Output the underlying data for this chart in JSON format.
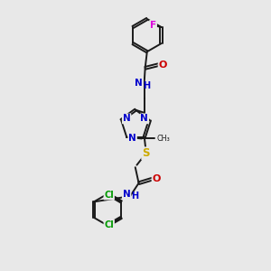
{
  "background_color": "#e8e8e8",
  "atom_colors": {
    "C": "#000000",
    "N": "#0000cc",
    "O": "#cc0000",
    "S": "#ccaa00",
    "F": "#dd00dd",
    "Cl": "#009900",
    "H": "#000000"
  },
  "bond_color": "#1a1a1a",
  "lw": 1.4
}
